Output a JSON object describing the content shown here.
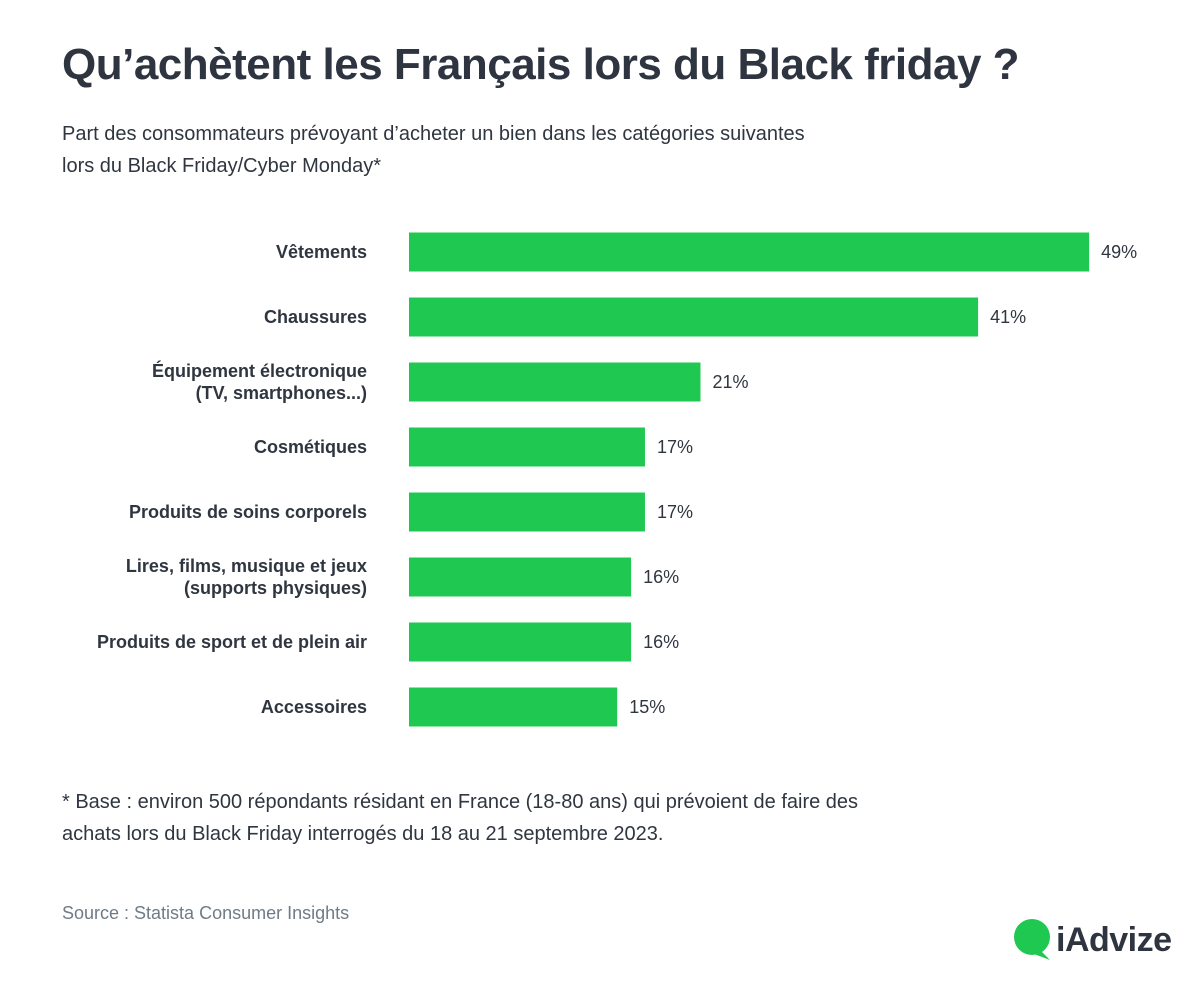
{
  "header": {
    "title": "Qu’achètent les Français lors du Black friday ?",
    "subtitle_line1": "Part des consommateurs prévoyant d’acheter un bien dans les catégories suivantes",
    "subtitle_line2": "lors du Black Friday/Cyber Monday*"
  },
  "chart_data": {
    "type": "bar",
    "orientation": "horizontal",
    "categories": [
      [
        "Vêtements"
      ],
      [
        "Chaussures"
      ],
      [
        "Équipement électronique",
        "(TV, smartphones...)"
      ],
      [
        "Cosmétiques"
      ],
      [
        "Produits de soins corporels"
      ],
      [
        "Lires, films, musique et jeux",
        "(supports physiques)"
      ],
      [
        "Produits de sport et de plein air"
      ],
      [
        "Accessoires"
      ]
    ],
    "values": [
      49,
      41,
      21,
      17,
      17,
      16,
      16,
      15
    ],
    "value_labels": [
      "49%",
      "41%",
      "21%",
      "17%",
      "17%",
      "16%",
      "16%",
      "15%"
    ],
    "unit": "%",
    "bar_color": "#1fc851",
    "grid": false,
    "legend": "none"
  },
  "footnote": {
    "line1": "* Base : environ 500 répondants résidant en France (18-80 ans) qui prévoient de faire des",
    "line2": "achats lors du Black Friday interrogés du 18 au 21 septembre 2023."
  },
  "source": "Source : Statista Consumer Insights",
  "brand": {
    "name": "iAdvize",
    "color": "#1fc851",
    "logo_icon": "speech-bubble-icon"
  }
}
